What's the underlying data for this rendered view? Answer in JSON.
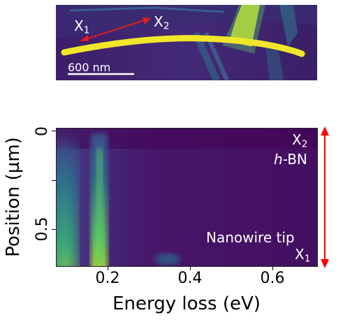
{
  "image_panel": {
    "scale_bar_label": "600 nm",
    "label_x1_main": "X",
    "label_x1_sub": "1",
    "label_x2_main": "X",
    "label_x2_sub": "2",
    "arrow_color": "#e11d1d"
  },
  "spectrum_panel": {
    "xlabel": "Energy loss (eV)",
    "ylabel": "Position (µm)",
    "x_ticks": [
      "0.2",
      "0.4",
      "0.6"
    ],
    "y_ticks": [
      "0",
      "0.5"
    ],
    "annotations": {
      "x2_main": "X",
      "x2_sub": "2",
      "hbn_italic": "h",
      "hbn_rest": "-BN",
      "tip": "Nanowire tip",
      "x1_main": "X",
      "x1_sub": "1"
    },
    "arrow_color": "#ff0000",
    "colormap": [
      "#440154",
      "#3b528b",
      "#21918c",
      "#5ec962",
      "#fde725"
    ]
  }
}
